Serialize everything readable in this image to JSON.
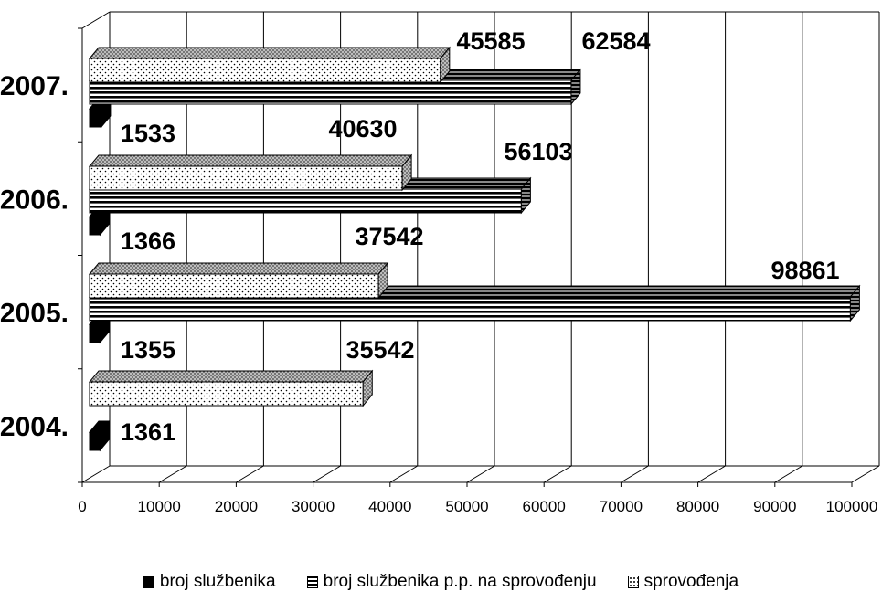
{
  "chart_data": {
    "type": "bar",
    "orientation": "horizontal",
    "three_d": true,
    "categories": [
      "2004.",
      "2005.",
      "2006.",
      "2007."
    ],
    "series": [
      {
        "name": "broj službenika",
        "values": [
          1361,
          1355,
          1366,
          1533
        ],
        "pattern": "solid-black"
      },
      {
        "name": "broj službenika p.p. na sprovođenju",
        "values": [
          null,
          98861,
          56103,
          62584
        ],
        "pattern": "horizontal-stripes"
      },
      {
        "name": "sprovođenja",
        "values": [
          35542,
          37542,
          40630,
          45585
        ],
        "pattern": "dotted"
      }
    ],
    "xlim": [
      0,
      100000
    ],
    "xticks": [
      0,
      10000,
      20000,
      30000,
      40000,
      50000,
      60000,
      70000,
      80000,
      90000,
      100000
    ],
    "grid": true,
    "legend_position": "bottom",
    "title": "",
    "xlabel": "",
    "ylabel": ""
  }
}
